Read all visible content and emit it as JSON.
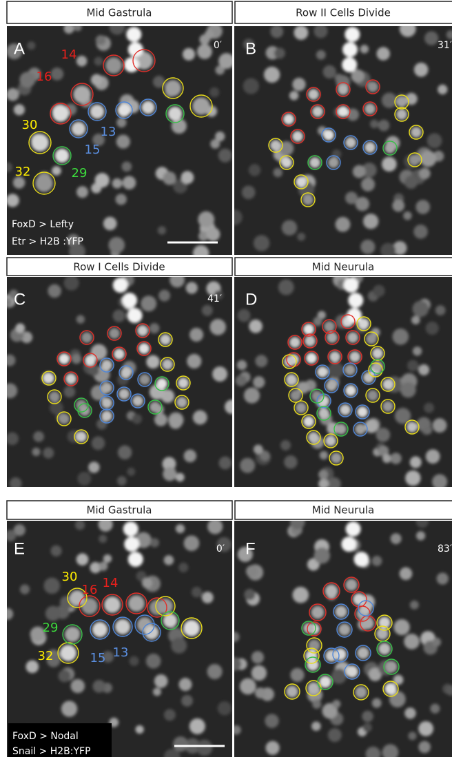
{
  "panels": [
    {
      "header": "Mid Gastrula",
      "letter": "A",
      "time": "0′",
      "cell_labels": [
        "14",
        "16",
        "30",
        "13",
        "15",
        "32",
        "29"
      ],
      "captions": [
        "FoxD > Lefty",
        "Etr > H2B :YFP"
      ]
    },
    {
      "header": "Row II Cells Divide",
      "letter": "B",
      "time": "31′"
    },
    {
      "header": "Row I Cells Divide",
      "letter": "C",
      "time": "41′"
    },
    {
      "header": "Mid Neurula",
      "letter": "D"
    },
    {
      "header": "Mid Gastrula",
      "letter": "E",
      "time": "0′",
      "cell_labels": [
        "30",
        "16",
        "14",
        "29",
        "32",
        "15",
        "13"
      ],
      "captions": [
        "FoxD > Nodal",
        "Snail > H2B:YFP"
      ]
    },
    {
      "header": "Mid Neurula",
      "letter": "F",
      "time": "83′"
    }
  ]
}
